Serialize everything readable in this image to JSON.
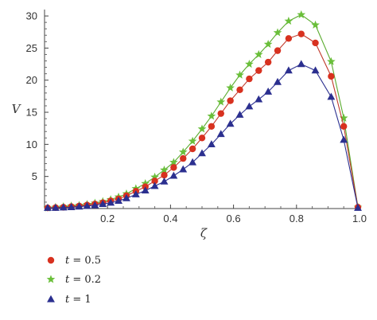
{
  "chart_data": {
    "type": "line",
    "xlabel": "ζ",
    "ylabel": "V",
    "xlim": [
      0.0,
      1.0
    ],
    "ylim": [
      0,
      31
    ],
    "xticks": [
      {
        "value": 0.2,
        "label": "0.2"
      },
      {
        "value": 0.4,
        "label": "0.4"
      },
      {
        "value": 0.6,
        "label": "0.6"
      },
      {
        "value": 0.8,
        "label": "0.8"
      },
      {
        "value": 1.0,
        "label": "1.0"
      }
    ],
    "yticks": [
      {
        "value": 5,
        "label": "5"
      },
      {
        "value": 10,
        "label": "10"
      },
      {
        "value": 15,
        "label": "15"
      },
      {
        "value": 20,
        "label": "20"
      },
      {
        "value": 25,
        "label": "25"
      },
      {
        "value": 30,
        "label": "30"
      }
    ],
    "grid": false,
    "legend_position": "bottom-left",
    "series": [
      {
        "name": "t = 0.5",
        "legend_var": "t",
        "legend_value": " = 0.5",
        "marker": "circle",
        "color": "#d8311f",
        "line_color": "#c0392b",
        "x": [
          0.01,
          0.035,
          0.06,
          0.085,
          0.11,
          0.135,
          0.16,
          0.185,
          0.21,
          0.235,
          0.26,
          0.29,
          0.32,
          0.35,
          0.38,
          0.41,
          0.44,
          0.47,
          0.5,
          0.53,
          0.56,
          0.59,
          0.62,
          0.65,
          0.68,
          0.71,
          0.74,
          0.775,
          0.815,
          0.86,
          0.91,
          0.95,
          0.995
        ],
        "y": [
          0.1,
          0.15,
          0.2,
          0.3,
          0.4,
          0.55,
          0.7,
          0.9,
          1.2,
          1.5,
          2.0,
          2.7,
          3.4,
          4.3,
          5.2,
          6.4,
          7.8,
          9.3,
          11.0,
          12.8,
          14.8,
          16.8,
          18.5,
          20.2,
          21.5,
          22.8,
          24.6,
          26.5,
          27.2,
          25.8,
          20.6,
          12.8,
          0.2
        ]
      },
      {
        "name": "t = 0.2",
        "legend_var": "t",
        "legend_value": " = 0.2",
        "marker": "star",
        "color": "#6abf3a",
        "line_color": "#5aab2e",
        "x": [
          0.01,
          0.035,
          0.06,
          0.085,
          0.11,
          0.135,
          0.16,
          0.185,
          0.21,
          0.235,
          0.26,
          0.29,
          0.32,
          0.35,
          0.38,
          0.41,
          0.44,
          0.47,
          0.5,
          0.53,
          0.56,
          0.59,
          0.62,
          0.65,
          0.68,
          0.71,
          0.74,
          0.775,
          0.815,
          0.86,
          0.91,
          0.95,
          0.995
        ],
        "y": [
          0.1,
          0.2,
          0.3,
          0.4,
          0.5,
          0.65,
          0.85,
          1.1,
          1.4,
          1.8,
          2.3,
          3.1,
          3.9,
          4.9,
          6.0,
          7.2,
          8.8,
          10.5,
          12.4,
          14.4,
          16.6,
          18.8,
          20.8,
          22.5,
          24.0,
          25.6,
          27.4,
          29.2,
          30.2,
          28.6,
          22.9,
          14.1,
          0.2
        ]
      },
      {
        "name": "t = 1",
        "legend_var": "t",
        "legend_value": " = 1",
        "marker": "triangle",
        "color": "#2b2f8f",
        "line_color": "#2b2f8f",
        "x": [
          0.01,
          0.035,
          0.06,
          0.085,
          0.11,
          0.135,
          0.16,
          0.185,
          0.21,
          0.235,
          0.26,
          0.29,
          0.32,
          0.35,
          0.38,
          0.41,
          0.44,
          0.47,
          0.5,
          0.53,
          0.56,
          0.59,
          0.62,
          0.65,
          0.68,
          0.71,
          0.74,
          0.775,
          0.815,
          0.86,
          0.91,
          0.95,
          0.995
        ],
        "y": [
          0.1,
          0.1,
          0.15,
          0.2,
          0.3,
          0.4,
          0.5,
          0.7,
          0.9,
          1.2,
          1.6,
          2.2,
          2.8,
          3.5,
          4.2,
          5.1,
          6.1,
          7.2,
          8.6,
          10.0,
          11.6,
          13.2,
          14.6,
          15.9,
          17.0,
          18.2,
          19.7,
          21.5,
          22.5,
          21.5,
          17.4,
          10.7,
          0.1
        ]
      }
    ]
  }
}
